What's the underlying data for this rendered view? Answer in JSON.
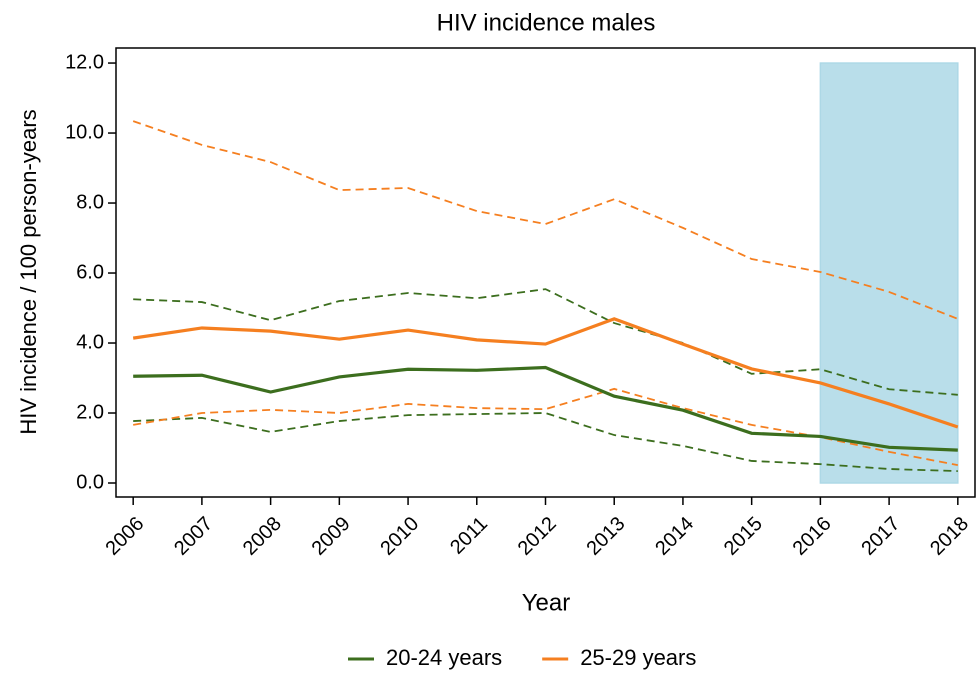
{
  "chart_data": {
    "type": "line",
    "title": "HIV incidence males",
    "xlabel": "Year",
    "ylabel": "HIV incidence / 100 person-years",
    "x": [
      2006,
      2007,
      2008,
      2009,
      2010,
      2011,
      2012,
      2013,
      2014,
      2015,
      2016,
      2017,
      2018
    ],
    "series": [
      {
        "name": "20-24 years",
        "color": "#3c6e1e",
        "values": [
          3.05,
          3.08,
          2.6,
          3.03,
          3.25,
          3.22,
          3.3,
          2.48,
          2.08,
          1.42,
          1.33,
          1.02,
          0.94
        ],
        "upper": [
          5.25,
          5.17,
          4.65,
          5.2,
          5.43,
          5.28,
          5.54,
          4.57,
          4.0,
          3.12,
          3.25,
          2.68,
          2.52
        ],
        "lower": [
          1.77,
          1.86,
          1.46,
          1.77,
          1.94,
          1.97,
          2.0,
          1.37,
          1.06,
          0.63,
          0.54,
          0.4,
          0.34
        ]
      },
      {
        "name": "25-29 years",
        "color": "#f57f20",
        "values": [
          4.14,
          4.43,
          4.34,
          4.11,
          4.37,
          4.09,
          3.97,
          4.69,
          3.97,
          3.26,
          2.86,
          2.26,
          1.6
        ],
        "upper": [
          10.34,
          9.66,
          9.17,
          8.37,
          8.43,
          7.77,
          7.4,
          8.11,
          7.29,
          6.4,
          6.03,
          5.46,
          4.69
        ],
        "lower": [
          1.66,
          2.0,
          2.09,
          2.0,
          2.26,
          2.14,
          2.11,
          2.69,
          2.14,
          1.66,
          1.31,
          0.89,
          0.51
        ]
      }
    ],
    "shaded_region": {
      "x": [
        2016,
        2018
      ],
      "y": [
        0,
        12
      ],
      "color": "#add8e6"
    },
    "xlim": [
      2005.75,
      2018.25
    ],
    "ylim": [
      -0.4,
      12.43
    ],
    "xticks": [
      2006,
      2007,
      2008,
      2009,
      2010,
      2011,
      2012,
      2013,
      2014,
      2015,
      2016,
      2017,
      2018
    ],
    "yticks": [
      {
        "value": 0,
        "label": "0.0"
      },
      {
        "value": 2,
        "label": "2.0"
      },
      {
        "value": 4,
        "label": "4.0"
      },
      {
        "value": 6,
        "label": "6.0"
      },
      {
        "value": 8,
        "label": "8.0"
      },
      {
        "value": 10,
        "label": "10.0"
      },
      {
        "value": 12,
        "label": "12.0"
      }
    ],
    "legend": "bottom"
  }
}
